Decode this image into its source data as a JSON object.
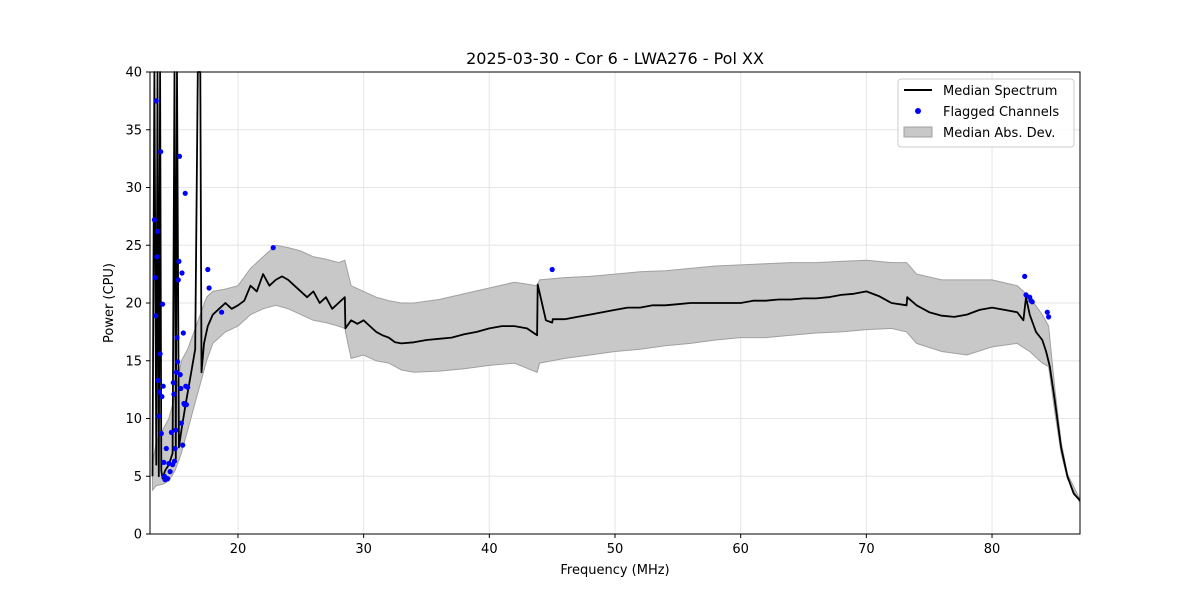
{
  "chart_data": {
    "type": "line",
    "title": "2025-03-30 - Cor 6 - LWA276 - Pol XX",
    "xlabel": "Frequency (MHz)",
    "ylabel": "Power (CPU)",
    "xlim": [
      13.0,
      87.0
    ],
    "ylim": [
      0,
      40
    ],
    "xticks": [
      20,
      30,
      40,
      50,
      60,
      70,
      80
    ],
    "yticks": [
      0,
      5,
      10,
      15,
      20,
      25,
      30,
      35,
      40
    ],
    "grid": true,
    "legend_position": "top-right",
    "legend": [
      "Median Spectrum",
      "Flagged Channels",
      "Median Abs. Dev."
    ],
    "colors": {
      "median": "#000000",
      "flagged": "#0000ff",
      "band": "#c8c8c8",
      "band_edge": "#a0a0a0"
    },
    "series": [
      {
        "name": "Median Spectrum",
        "x": [
          13.2,
          13.35,
          13.5,
          13.6,
          13.7,
          13.8,
          13.9,
          14.0,
          14.2,
          14.5,
          14.8,
          14.95,
          15.05,
          15.15,
          15.3,
          15.5,
          15.8,
          16.2,
          16.6,
          16.8,
          16.9,
          17.0,
          17.1,
          17.3,
          17.6,
          18.0,
          18.5,
          19.0,
          19.5,
          20.0,
          20.5,
          21.0,
          21.5,
          22.0,
          22.5,
          23.0,
          23.5,
          24.0,
          24.5,
          25.0,
          25.5,
          26.0,
          26.5,
          27.0,
          27.5,
          28.0,
          28.5,
          28.55,
          29.0,
          29.5,
          30.0,
          30.5,
          31.0,
          31.5,
          32.0,
          32.5,
          33.0,
          34.0,
          35.0,
          36.0,
          37.0,
          38.0,
          39.0,
          40.0,
          41.0,
          42.0,
          43.0,
          43.8,
          43.85,
          44.5,
          45.0,
          45.05,
          46.0,
          47.0,
          48.0,
          49.0,
          50.0,
          51.0,
          52.0,
          53.0,
          54.0,
          55.0,
          56.0,
          57.0,
          58.0,
          59.0,
          60.0,
          61.0,
          62.0,
          63.0,
          64.0,
          65.0,
          66.0,
          67.0,
          68.0,
          69.0,
          70.0,
          71.0,
          72.0,
          73.2,
          73.25,
          74.0,
          75.0,
          76.0,
          77.0,
          78.0,
          79.0,
          80.0,
          81.0,
          82.0,
          82.5,
          82.7,
          83.0,
          83.5,
          84.0,
          84.3,
          84.6,
          85.0,
          85.5,
          86.0,
          86.5,
          87.0
        ],
        "y": [
          5.0,
          40.0,
          6.0,
          40.0,
          5.0,
          40.0,
          5.5,
          4.8,
          5.5,
          6.0,
          7.0,
          40.0,
          6.5,
          40.0,
          7.5,
          9.0,
          11.0,
          13.5,
          16.0,
          40.0,
          40.0,
          40.0,
          14.0,
          16.5,
          18.0,
          19.0,
          19.5,
          20.0,
          19.5,
          19.8,
          20.2,
          21.5,
          21.0,
          22.5,
          21.5,
          22.0,
          22.3,
          22.0,
          21.5,
          21.0,
          20.5,
          21.0,
          20.0,
          20.5,
          19.5,
          20.0,
          20.5,
          17.8,
          18.5,
          18.2,
          18.5,
          18.0,
          17.5,
          17.2,
          17.0,
          16.6,
          16.5,
          16.6,
          16.8,
          16.9,
          17.0,
          17.3,
          17.5,
          17.8,
          18.0,
          18.0,
          17.8,
          17.2,
          21.6,
          18.5,
          18.3,
          18.6,
          18.6,
          18.8,
          19.0,
          19.2,
          19.4,
          19.6,
          19.6,
          19.8,
          19.8,
          19.9,
          20.0,
          20.0,
          20.0,
          20.0,
          20.0,
          20.2,
          20.2,
          20.3,
          20.3,
          20.4,
          20.4,
          20.5,
          20.7,
          20.8,
          21.0,
          20.6,
          20.0,
          19.8,
          20.5,
          19.8,
          19.2,
          18.9,
          18.8,
          19.0,
          19.4,
          19.6,
          19.4,
          19.2,
          18.5,
          20.5,
          19.0,
          17.5,
          16.8,
          15.8,
          14.5,
          11.5,
          7.5,
          5.0,
          3.5,
          2.9
        ]
      },
      {
        "name": "Median Abs. Dev.",
        "x": [
          13.2,
          13.5,
          14.0,
          14.5,
          15.0,
          15.5,
          16.0,
          16.5,
          17.0,
          17.5,
          18.0,
          19.0,
          20.0,
          21.0,
          22.0,
          23.0,
          24.0,
          25.0,
          26.0,
          27.0,
          28.0,
          28.5,
          29.0,
          30.0,
          31.0,
          32.0,
          33.0,
          34.0,
          36.0,
          38.0,
          40.0,
          42.0,
          43.8,
          44.0,
          46.0,
          48.0,
          50.0,
          52.0,
          54.0,
          56.0,
          58.0,
          60.0,
          62.0,
          64.0,
          66.0,
          68.0,
          70.0,
          72.0,
          73.2,
          74.0,
          76.0,
          78.0,
          80.0,
          82.0,
          83.0,
          84.0,
          84.5,
          85.0,
          85.5,
          86.0,
          87.0
        ],
        "lower": [
          3.8,
          4.2,
          4.3,
          4.6,
          5.5,
          7.0,
          9.0,
          11.0,
          13.0,
          15.0,
          16.5,
          17.5,
          18.0,
          19.0,
          19.5,
          19.8,
          19.5,
          19.0,
          18.5,
          18.3,
          18.0,
          17.8,
          15.2,
          15.5,
          15.0,
          14.8,
          14.2,
          14.0,
          14.1,
          14.3,
          14.6,
          14.8,
          14.0,
          14.8,
          15.2,
          15.5,
          15.8,
          16.0,
          16.3,
          16.5,
          16.8,
          17.0,
          17.0,
          17.2,
          17.4,
          17.5,
          17.7,
          17.8,
          17.5,
          16.5,
          15.8,
          15.5,
          16.2,
          16.5,
          15.8,
          14.8,
          14.5,
          10.5,
          7.0,
          4.8,
          2.7
        ],
        "upper": [
          6.0,
          8.0,
          9.0,
          10.0,
          12.0,
          15.0,
          16.0,
          17.5,
          19.0,
          20.5,
          21.0,
          21.2,
          21.5,
          23.0,
          24.0,
          25.0,
          24.8,
          24.5,
          24.0,
          23.8,
          23.5,
          23.7,
          21.5,
          21.0,
          20.5,
          20.2,
          20.0,
          20.0,
          20.3,
          20.8,
          21.3,
          21.8,
          21.5,
          22.0,
          22.2,
          22.3,
          22.5,
          22.7,
          22.8,
          23.0,
          23.2,
          23.3,
          23.4,
          23.5,
          23.5,
          23.6,
          23.7,
          23.5,
          23.5,
          22.5,
          22.0,
          22.0,
          22.0,
          21.5,
          20.5,
          19.0,
          18.0,
          12.5,
          8.0,
          5.2,
          3.0
        ]
      },
      {
        "name": "Flagged Channels",
        "x": [
          13.35,
          13.4,
          13.45,
          13.5,
          13.55,
          13.6,
          13.65,
          13.7,
          13.75,
          13.8,
          13.85,
          13.9,
          13.95,
          14.0,
          14.05,
          14.1,
          14.15,
          14.2,
          14.3,
          14.4,
          14.5,
          14.6,
          14.7,
          14.8,
          14.85,
          14.9,
          14.95,
          15.0,
          15.05,
          15.1,
          15.15,
          15.2,
          15.25,
          15.3,
          15.35,
          15.4,
          15.45,
          15.5,
          15.55,
          15.6,
          15.65,
          15.7,
          15.75,
          15.8,
          15.85,
          15.9,
          16.0,
          17.6,
          17.7,
          18.7,
          22.8,
          45.0,
          82.6,
          82.7,
          83.0,
          83.1,
          83.2,
          84.4,
          84.5
        ],
        "y": [
          27.2,
          22.2,
          18.9,
          37.5,
          24.0,
          26.2,
          13.3,
          10.2,
          12.3,
          15.6,
          33.1,
          8.7,
          11.9,
          19.9,
          12.8,
          6.2,
          5.0,
          4.7,
          7.4,
          4.8,
          6.1,
          5.4,
          8.8,
          6.0,
          13.1,
          12.1,
          6.3,
          7.4,
          9.0,
          14.0,
          17.0,
          14.9,
          22.0,
          23.6,
          32.7,
          13.8,
          12.6,
          9.6,
          22.6,
          7.7,
          17.4,
          11.3,
          11.2,
          29.5,
          12.8,
          11.2,
          12.7,
          22.9,
          21.3,
          19.2,
          24.8,
          22.9,
          22.3,
          20.7,
          20.5,
          20.2,
          20.1,
          19.2,
          18.8
        ]
      }
    ]
  }
}
